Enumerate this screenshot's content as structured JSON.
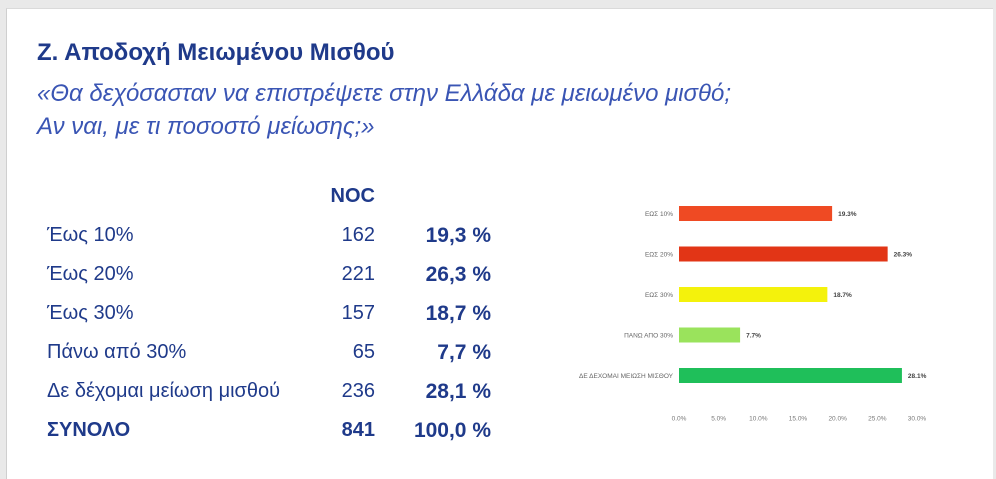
{
  "heading": "Ζ. Αποδοχή Μειωμένου Μισθού",
  "question_line1": "«Θα δεχόσασταν να επιστρέψετε στην Ελλάδα με μειωμένο μισθό;",
  "question_line2": "Αν ναι, με τι ποσοστό μείωσης;»",
  "table": {
    "header_n": "NOC",
    "rows": [
      {
        "label": "Έως 10%",
        "n": "162",
        "pct": "19,3 %"
      },
      {
        "label": "Έως 20%",
        "n": "221",
        "pct": "26,3 %"
      },
      {
        "label": "Έως 30%",
        "n": "157",
        "pct": "18,7 %"
      },
      {
        "label": "Πάνω από 30%",
        "n": "65",
        "pct": "7,7 %"
      },
      {
        "label": "Δε δέχομαι μείωση μισθού",
        "n": "236",
        "pct": "28,1 %"
      }
    ],
    "total": {
      "label": "ΣΥΝΟΛΟ",
      "n": "841",
      "pct": "100,0 %"
    }
  },
  "chart_data": {
    "type": "bar",
    "orientation": "horizontal",
    "categories": [
      "ΕΩΣ 10%",
      "ΕΩΣ 20%",
      "ΕΩΣ 30%",
      "ΠΑΝΩ ΑΠΟ 30%",
      "ΔΕ ΔΕΧΟΜΑΙ ΜΕΙΩΣΗ ΜΙΣΘΟΥ"
    ],
    "values": [
      19.3,
      26.3,
      18.7,
      7.7,
      28.1
    ],
    "value_labels": [
      "19.3%",
      "26.3%",
      "18.7%",
      "7.7%",
      "28.1%"
    ],
    "colors": [
      "#ef4a23",
      "#e23516",
      "#f4f20c",
      "#9ae35c",
      "#1fbf5a"
    ],
    "xlim": [
      0,
      30
    ],
    "xticks": [
      "0.0%",
      "5.0%",
      "10.0%",
      "15.0%",
      "20.0%",
      "25.0%",
      "30.0%"
    ],
    "tick_values": [
      0,
      5,
      10,
      15,
      20,
      25,
      30
    ],
    "grid": false
  },
  "colors": {
    "heading": "#1f3a8a",
    "question": "#3a55b4"
  }
}
